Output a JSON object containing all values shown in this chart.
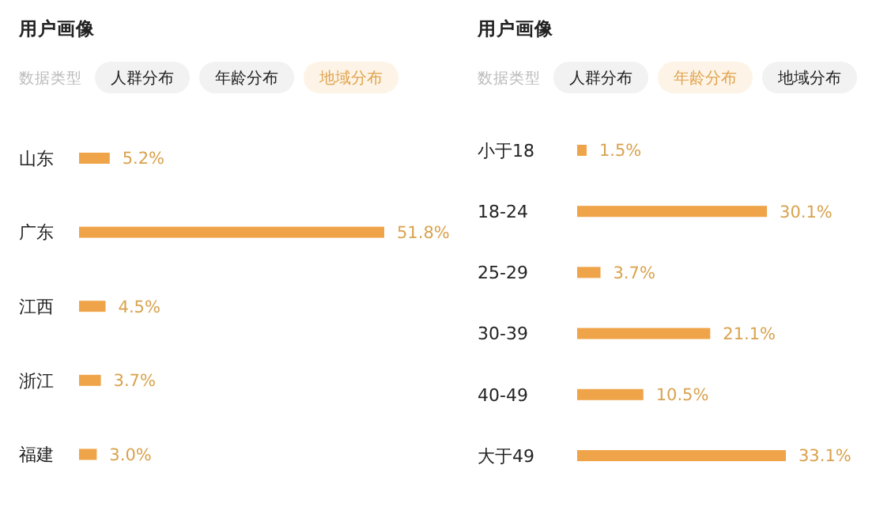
{
  "chart_data": [
    {
      "type": "bar",
      "orientation": "horizontal",
      "title": "用户画像",
      "annotations": [
        "数据类型",
        "人群分布",
        "年龄分布",
        "地域分布"
      ],
      "categories": [
        "山东",
        "广东",
        "江西",
        "浙江",
        "福建"
      ],
      "values": [
        5.2,
        51.8,
        4.5,
        3.7,
        3.0
      ],
      "value_labels": [
        "5.2%",
        "51.8%",
        "4.5%",
        "3.7%",
        "3.0%"
      ],
      "color": "#f0a44a"
    },
    {
      "type": "bar",
      "orientation": "horizontal",
      "title": "用户画像",
      "annotations": [
        "数据类型",
        "人群分布",
        "年龄分布",
        "地域分布"
      ],
      "categories": [
        "小于18",
        "18-24",
        "25-29",
        "30-39",
        "40-49",
        "大于49"
      ],
      "values": [
        1.5,
        30.1,
        3.7,
        21.1,
        10.5,
        33.1
      ],
      "value_labels": [
        "1.5%",
        "30.1%",
        "3.7%",
        "21.1%",
        "10.5%",
        "33.1%"
      ],
      "color": "#f0a44a"
    }
  ]
}
